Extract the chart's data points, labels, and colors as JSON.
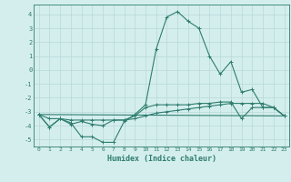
{
  "title": "",
  "xlabel": "Humidex (Indice chaleur)",
  "ylabel": "",
  "background_color": "#d4eeee",
  "line_color": "#2e7d6e",
  "grid_color": "#b8d8d8",
  "xlim": [
    -0.5,
    23.5
  ],
  "ylim": [
    -5.5,
    4.7
  ],
  "xticks": [
    0,
    1,
    2,
    3,
    4,
    5,
    6,
    7,
    8,
    9,
    10,
    11,
    12,
    13,
    14,
    15,
    16,
    17,
    18,
    19,
    20,
    21,
    22,
    23
  ],
  "yticks": [
    -5,
    -4,
    -3,
    -2,
    -1,
    0,
    1,
    2,
    3,
    4
  ],
  "line1_x": [
    0,
    1,
    2,
    3,
    4,
    5,
    6,
    7,
    8,
    9,
    10,
    11,
    12,
    13,
    14,
    15,
    16,
    17,
    18,
    19,
    20,
    21,
    22,
    23
  ],
  "line1_y": [
    -3.2,
    -4.1,
    -3.5,
    -3.8,
    -4.8,
    -4.8,
    -5.2,
    -5.2,
    -3.7,
    -3.2,
    -2.5,
    1.5,
    3.8,
    4.2,
    3.5,
    3.0,
    1.0,
    -0.3,
    0.6,
    -1.6,
    -1.4,
    -2.7,
    -2.7,
    -3.3
  ],
  "line2_x": [
    0,
    1,
    2,
    3,
    4,
    5,
    6,
    7,
    8,
    9,
    10,
    11,
    12,
    13,
    14,
    15,
    16,
    17,
    18,
    19,
    20,
    21,
    22,
    23
  ],
  "line2_y": [
    -3.2,
    -4.1,
    -3.5,
    -3.9,
    -3.7,
    -3.9,
    -4.0,
    -3.6,
    -3.6,
    -3.3,
    -2.7,
    -2.5,
    -2.5,
    -2.5,
    -2.5,
    -2.4,
    -2.4,
    -2.3,
    -2.3,
    -3.5,
    -2.7,
    -2.7,
    -2.7,
    -3.3
  ],
  "line3_x": [
    0,
    1,
    2,
    3,
    4,
    5,
    6,
    7,
    8,
    9,
    10,
    11,
    12,
    13,
    14,
    15,
    16,
    17,
    18,
    19,
    20,
    21,
    22,
    23
  ],
  "line3_y": [
    -3.2,
    -3.5,
    -3.5,
    -3.6,
    -3.6,
    -3.6,
    -3.6,
    -3.6,
    -3.6,
    -3.5,
    -3.3,
    -3.1,
    -3.0,
    -2.9,
    -2.8,
    -2.7,
    -2.6,
    -2.5,
    -2.4,
    -2.4,
    -2.4,
    -2.4,
    -2.7,
    -3.3
  ],
  "line4_x": [
    0,
    23
  ],
  "line4_y": [
    -3.2,
    -3.3
  ]
}
